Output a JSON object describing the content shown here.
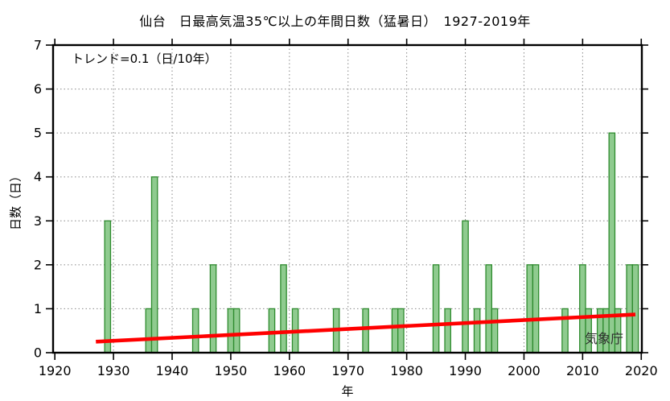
{
  "colors": {
    "background": "#ffffff",
    "bar_fill": "#8fcb8f",
    "bar_border": "#2e8b2e",
    "trend_line": "#ff0000",
    "grid": "#888888",
    "axis": "#000000",
    "text": "#000000",
    "watermark_text": "#2e2e2e"
  },
  "chart_data": {
    "type": "bar",
    "title": "仙台　日最高気温35℃以上の年間日数（猛暑日）　1927-2019年",
    "station": "仙台",
    "period": "1927-2019年",
    "xlabel": "年",
    "ylabel": "日数（日）",
    "watermark": "気象庁",
    "xlim": [
      1919.7,
      2020.1
    ],
    "ylim": [
      0,
      7
    ],
    "x_ticks": [
      1920,
      1930,
      1940,
      1950,
      1960,
      1970,
      1980,
      1990,
      2000,
      2010,
      2020
    ],
    "y_ticks": [
      0,
      1,
      2,
      3,
      4,
      5,
      6,
      7
    ],
    "grid": "dotted",
    "bars": [
      {
        "year": 1929,
        "days": 3
      },
      {
        "year": 1936,
        "days": 1
      },
      {
        "year": 1937,
        "days": 4
      },
      {
        "year": 1944,
        "days": 1
      },
      {
        "year": 1947,
        "days": 2
      },
      {
        "year": 1950,
        "days": 1
      },
      {
        "year": 1951,
        "days": 1
      },
      {
        "year": 1957,
        "days": 1
      },
      {
        "year": 1959,
        "days": 2
      },
      {
        "year": 1961,
        "days": 1
      },
      {
        "year": 1968,
        "days": 1
      },
      {
        "year": 1973,
        "days": 1
      },
      {
        "year": 1978,
        "days": 1
      },
      {
        "year": 1979,
        "days": 1
      },
      {
        "year": 1985,
        "days": 2
      },
      {
        "year": 1987,
        "days": 1
      },
      {
        "year": 1990,
        "days": 3
      },
      {
        "year": 1992,
        "days": 1
      },
      {
        "year": 1994,
        "days": 2
      },
      {
        "year": 1995,
        "days": 1
      },
      {
        "year": 2001,
        "days": 2
      },
      {
        "year": 2002,
        "days": 2
      },
      {
        "year": 2007,
        "days": 1
      },
      {
        "year": 2010,
        "days": 2
      },
      {
        "year": 2011,
        "days": 1
      },
      {
        "year": 2013,
        "days": 1
      },
      {
        "year": 2014,
        "days": 1
      },
      {
        "year": 2015,
        "days": 5
      },
      {
        "year": 2016,
        "days": 1
      },
      {
        "year": 2018,
        "days": 2
      },
      {
        "year": 2019,
        "days": 2
      }
    ],
    "all_other_years_value": 0,
    "trend_line": {
      "label": "トレンド=0.1（日/10年）",
      "value_per_decade": 0.1,
      "start": {
        "year": 1927,
        "value": 0.25
      },
      "end": {
        "year": 2019,
        "value": 0.87
      }
    }
  }
}
